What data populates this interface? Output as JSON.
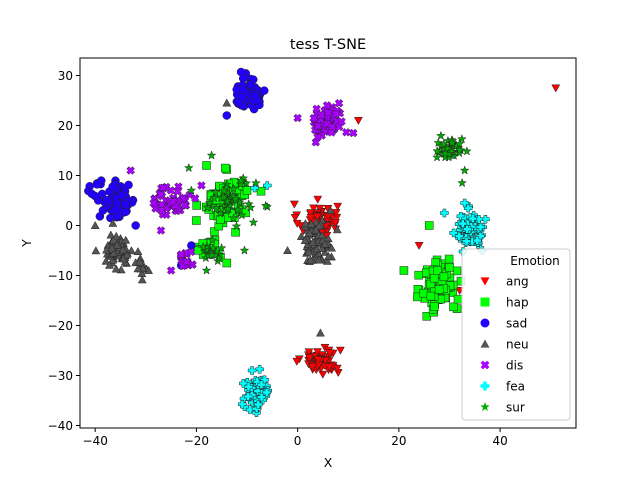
{
  "chart_data": {
    "type": "scatter",
    "title": "tess T-SNE",
    "xlabel": "X",
    "ylabel": "Y",
    "xlim": [
      -43,
      55
    ],
    "ylim": [
      -40.5,
      33.5
    ],
    "xticks": [
      -40,
      -20,
      0,
      20,
      40
    ],
    "yticks": [
      -40,
      -30,
      -20,
      -10,
      0,
      10,
      20,
      30
    ],
    "legend": {
      "title": "Emotion",
      "position": "lower-right"
    },
    "grid": false,
    "series": [
      {
        "name": "ang",
        "marker": "triangle-down",
        "color": "#ff0000",
        "clusters": [
          {
            "center": [
              4,
              1
            ],
            "spread": [
              3.2,
              2.8
            ],
            "count": 70
          },
          {
            "center": [
              4.5,
              -27
            ],
            "spread": [
              3.2,
              2.2
            ],
            "count": 65
          }
        ],
        "points": [
          [
            51,
            27.5
          ],
          [
            32,
            -13
          ],
          [
            12,
            21
          ],
          [
            24,
            -4
          ]
        ]
      },
      {
        "name": "hap",
        "marker": "square",
        "color": "#00ff00",
        "clusters": [
          {
            "center": [
              -14,
              5
            ],
            "spread": [
              3.5,
              4
            ],
            "count": 90
          },
          {
            "center": [
              -17,
              -5
            ],
            "spread": [
              2,
              2
            ],
            "count": 20
          },
          {
            "center": [
              28,
              -12
            ],
            "spread": [
              2.8,
              4.5
            ],
            "count": 95
          }
        ],
        "points": [
          [
            -18,
            12
          ],
          [
            -20,
            1
          ],
          [
            -14,
            -7.5
          ],
          [
            21,
            -9
          ],
          [
            26,
            0
          ],
          [
            -10,
            7
          ]
        ]
      },
      {
        "name": "sad",
        "marker": "circle",
        "color": "#2200ff",
        "clusters": [
          {
            "center": [
              -9.5,
              26.5
            ],
            "spread": [
              2.6,
              2.5
            ],
            "count": 65
          },
          {
            "center": [
              -36,
              5
            ],
            "spread": [
              3.3,
              3
            ],
            "count": 90
          }
        ],
        "points": [
          [
            -14,
            22
          ],
          [
            -37,
            1.5
          ],
          [
            -32,
            0
          ],
          [
            -21,
            -4
          ],
          [
            -23,
            -8
          ]
        ]
      },
      {
        "name": "neu",
        "marker": "triangle-up",
        "color": "#555555",
        "clusters": [
          {
            "center": [
              -35.5,
              -5
            ],
            "spread": [
              2.5,
              3
            ],
            "count": 60
          },
          {
            "center": [
              -30.5,
              -8.5
            ],
            "spread": [
              1.6,
              1.2
            ],
            "count": 12
          },
          {
            "center": [
              3.5,
              -3
            ],
            "spread": [
              2.5,
              3.5
            ],
            "count": 70
          }
        ],
        "points": [
          [
            -14,
            24.5
          ],
          [
            -40,
            0
          ],
          [
            -2,
            -5
          ],
          [
            6.5,
            3
          ],
          [
            4.5,
            -21.5
          ]
        ]
      },
      {
        "name": "dis",
        "marker": "x",
        "color": "#aa00ff",
        "clusters": [
          {
            "center": [
              6,
              20.5
            ],
            "spread": [
              2.6,
              2.6
            ],
            "count": 70
          },
          {
            "center": [
              -25,
              5
            ],
            "spread": [
              2.8,
              2.6
            ],
            "count": 55
          },
          {
            "center": [
              -22,
              -7
            ],
            "spread": [
              1.8,
              1.4
            ],
            "count": 15
          }
        ],
        "points": [
          [
            0,
            21.5
          ],
          [
            11,
            18.5
          ],
          [
            -19,
            8
          ],
          [
            -25,
            -9
          ],
          [
            -33,
            11
          ],
          [
            -27,
            -1
          ]
        ]
      },
      {
        "name": "fea",
        "marker": "plus",
        "color": "#00ffff",
        "clusters": [
          {
            "center": [
              34,
              -0.5
            ],
            "spread": [
              2.3,
              2.8
            ],
            "count": 70
          },
          {
            "center": [
              -8,
              -33.5
            ],
            "spread": [
              2.2,
              2.8
            ],
            "count": 70
          }
        ],
        "points": [
          [
            29,
            2.5
          ],
          [
            33,
            4.5
          ],
          [
            35.5,
            -3
          ],
          [
            36.5,
            -5
          ],
          [
            -8.5,
            7.5
          ],
          [
            -6,
            8
          ],
          [
            -9,
            -29
          ]
        ]
      },
      {
        "name": "sur",
        "marker": "star",
        "color": "#00aa00",
        "clusters": [
          {
            "center": [
              30,
              15
            ],
            "spread": [
              2.2,
              2
            ],
            "count": 45
          },
          {
            "center": [
              -13,
              5
            ],
            "spread": [
              4,
              3.2
            ],
            "count": 45
          },
          {
            "center": [
              -17.5,
              -5.5
            ],
            "spread": [
              1.6,
              1.8
            ],
            "count": 20
          }
        ],
        "points": [
          [
            -17,
            14
          ],
          [
            -18,
            -9
          ],
          [
            -21,
            7
          ],
          [
            32.5,
            8.5
          ],
          [
            33,
            11
          ],
          [
            -21.5,
            11.5
          ],
          [
            -10.5,
            -5
          ]
        ]
      }
    ]
  }
}
